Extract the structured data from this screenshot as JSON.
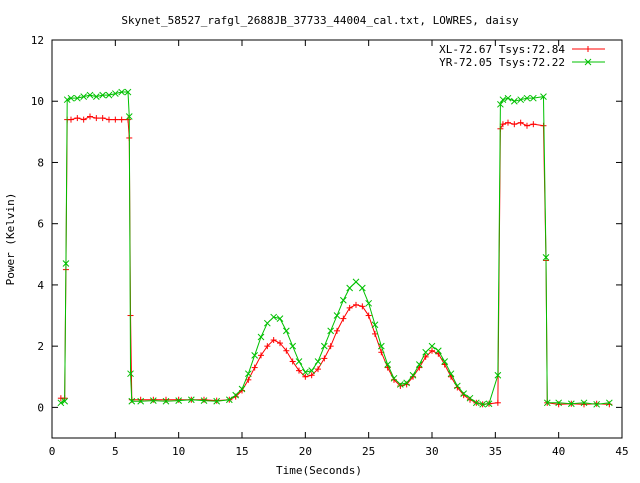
{
  "chart_data": {
    "type": "line",
    "title": "Skynet_58527_rafgl_2688JB_37733_44004_cal.txt, LOWRES, daisy",
    "xlabel": "Time(Seconds)",
    "ylabel": "Power (Kelvin)",
    "xlim": [
      0,
      45
    ],
    "ylim": [
      -1,
      12
    ],
    "xticks": [
      0,
      5,
      10,
      15,
      20,
      25,
      30,
      35,
      40,
      45
    ],
    "yticks": [
      0,
      2,
      4,
      6,
      8,
      10,
      12
    ],
    "grid": false,
    "legend_position": "top-right",
    "series": [
      {
        "name": "XL-72.67 Tsys:72.84",
        "color": "#ff0000",
        "marker": "+",
        "points": [
          [
            0.7,
            0.3
          ],
          [
            1.0,
            0.3
          ],
          [
            1.1,
            4.5
          ],
          [
            1.2,
            9.4
          ],
          [
            1.5,
            9.4
          ],
          [
            2,
            9.45
          ],
          [
            2.5,
            9.4
          ],
          [
            3,
            9.5
          ],
          [
            3.5,
            9.45
          ],
          [
            4,
            9.45
          ],
          [
            4.5,
            9.4
          ],
          [
            5,
            9.4
          ],
          [
            5.5,
            9.4
          ],
          [
            6.0,
            9.4
          ],
          [
            6.1,
            8.8
          ],
          [
            6.2,
            3.0
          ],
          [
            6.3,
            0.25
          ],
          [
            7,
            0.25
          ],
          [
            8,
            0.25
          ],
          [
            9,
            0.25
          ],
          [
            10,
            0.25
          ],
          [
            11,
            0.25
          ],
          [
            12,
            0.25
          ],
          [
            13,
            0.22
          ],
          [
            14,
            0.25
          ],
          [
            14.5,
            0.35
          ],
          [
            15,
            0.55
          ],
          [
            15.5,
            0.9
          ],
          [
            16,
            1.3
          ],
          [
            16.5,
            1.7
          ],
          [
            17,
            2.0
          ],
          [
            17.5,
            2.2
          ],
          [
            18,
            2.1
          ],
          [
            18.5,
            1.85
          ],
          [
            19,
            1.5
          ],
          [
            19.5,
            1.2
          ],
          [
            20,
            1.0
          ],
          [
            20.5,
            1.05
          ],
          [
            21,
            1.25
          ],
          [
            21.5,
            1.6
          ],
          [
            22,
            2.0
          ],
          [
            22.5,
            2.5
          ],
          [
            23,
            2.9
          ],
          [
            23.5,
            3.25
          ],
          [
            24,
            3.35
          ],
          [
            24.5,
            3.3
          ],
          [
            25,
            3.0
          ],
          [
            25.5,
            2.4
          ],
          [
            26,
            1.8
          ],
          [
            26.5,
            1.3
          ],
          [
            27,
            0.9
          ],
          [
            27.5,
            0.7
          ],
          [
            28,
            0.75
          ],
          [
            28.5,
            1.0
          ],
          [
            29,
            1.3
          ],
          [
            29.5,
            1.65
          ],
          [
            30,
            1.85
          ],
          [
            30.5,
            1.75
          ],
          [
            31,
            1.4
          ],
          [
            31.5,
            1.0
          ],
          [
            32,
            0.65
          ],
          [
            32.5,
            0.4
          ],
          [
            33,
            0.25
          ],
          [
            33.5,
            0.15
          ],
          [
            34,
            0.1
          ],
          [
            34.5,
            0.12
          ],
          [
            35.2,
            0.15
          ],
          [
            35.4,
            9.1
          ],
          [
            35.6,
            9.25
          ],
          [
            36,
            9.3
          ],
          [
            36.5,
            9.25
          ],
          [
            37,
            9.3
          ],
          [
            37.5,
            9.2
          ],
          [
            38,
            9.25
          ],
          [
            38.8,
            9.2
          ],
          [
            39,
            4.8
          ],
          [
            39.1,
            0.15
          ],
          [
            40,
            0.1
          ],
          [
            41,
            0.12
          ],
          [
            42,
            0.1
          ],
          [
            43,
            0.12
          ],
          [
            44,
            0.1
          ]
        ]
      },
      {
        "name": "YR-72.05 Tsys:72.22",
        "color": "#00c000",
        "marker": "x",
        "points": [
          [
            0.7,
            0.15
          ],
          [
            1.0,
            0.2
          ],
          [
            1.1,
            4.7
          ],
          [
            1.2,
            10.05
          ],
          [
            1.5,
            10.1
          ],
          [
            2,
            10.1
          ],
          [
            2.5,
            10.15
          ],
          [
            3,
            10.2
          ],
          [
            3.5,
            10.15
          ],
          [
            4,
            10.2
          ],
          [
            4.5,
            10.2
          ],
          [
            5,
            10.25
          ],
          [
            5.5,
            10.3
          ],
          [
            6.0,
            10.3
          ],
          [
            6.1,
            9.5
          ],
          [
            6.2,
            1.1
          ],
          [
            6.3,
            0.2
          ],
          [
            7,
            0.2
          ],
          [
            8,
            0.22
          ],
          [
            9,
            0.2
          ],
          [
            10,
            0.22
          ],
          [
            11,
            0.25
          ],
          [
            12,
            0.22
          ],
          [
            13,
            0.2
          ],
          [
            14,
            0.25
          ],
          [
            14.5,
            0.4
          ],
          [
            15,
            0.6
          ],
          [
            15.5,
            1.1
          ],
          [
            16,
            1.7
          ],
          [
            16.5,
            2.3
          ],
          [
            17,
            2.75
          ],
          [
            17.5,
            2.95
          ],
          [
            18,
            2.9
          ],
          [
            18.5,
            2.5
          ],
          [
            19,
            2.0
          ],
          [
            19.5,
            1.5
          ],
          [
            20,
            1.15
          ],
          [
            20.5,
            1.2
          ],
          [
            21,
            1.5
          ],
          [
            21.5,
            2.0
          ],
          [
            22,
            2.5
          ],
          [
            22.5,
            3.0
          ],
          [
            23,
            3.5
          ],
          [
            23.5,
            3.9
          ],
          [
            24,
            4.1
          ],
          [
            24.5,
            3.9
          ],
          [
            25,
            3.4
          ],
          [
            25.5,
            2.7
          ],
          [
            26,
            2.0
          ],
          [
            26.5,
            1.4
          ],
          [
            27,
            0.95
          ],
          [
            27.5,
            0.75
          ],
          [
            28,
            0.8
          ],
          [
            28.5,
            1.05
          ],
          [
            29,
            1.4
          ],
          [
            29.5,
            1.8
          ],
          [
            30,
            2.0
          ],
          [
            30.5,
            1.85
          ],
          [
            31,
            1.5
          ],
          [
            31.5,
            1.1
          ],
          [
            32,
            0.7
          ],
          [
            32.5,
            0.45
          ],
          [
            33,
            0.3
          ],
          [
            33.5,
            0.15
          ],
          [
            34,
            0.1
          ],
          [
            34.5,
            0.12
          ],
          [
            35.2,
            1.05
          ],
          [
            35.4,
            9.9
          ],
          [
            35.6,
            10.05
          ],
          [
            36,
            10.1
          ],
          [
            36.5,
            10.0
          ],
          [
            37,
            10.05
          ],
          [
            37.5,
            10.1
          ],
          [
            38,
            10.1
          ],
          [
            38.8,
            10.15
          ],
          [
            39,
            4.9
          ],
          [
            39.1,
            0.15
          ],
          [
            40,
            0.15
          ],
          [
            41,
            0.12
          ],
          [
            42,
            0.15
          ],
          [
            43,
            0.1
          ],
          [
            44,
            0.15
          ]
        ]
      }
    ]
  }
}
